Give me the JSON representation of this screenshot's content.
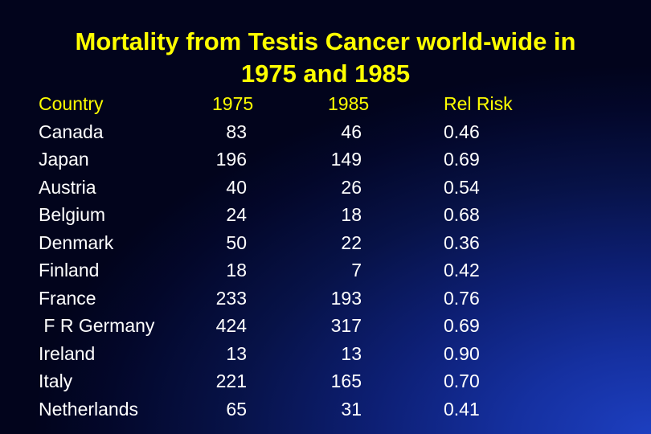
{
  "title": {
    "line1": "Mortality from Testis Cancer world-wide in",
    "line2": "1975 and 1985"
  },
  "table": {
    "headers": [
      "Country",
      "1975",
      "1985",
      "Rel Risk"
    ],
    "rows": [
      {
        "country": "Canada",
        "y1975": "83",
        "y1985": "46",
        "rel_risk": "0.46"
      },
      {
        "country": "Japan",
        "y1975": "196",
        "y1985": "149",
        "rel_risk": "0.69"
      },
      {
        "country": "Austria",
        "y1975": "40",
        "y1985": "26",
        "rel_risk": "0.54"
      },
      {
        "country": "Belgium",
        "y1975": "24",
        "y1985": "18",
        "rel_risk": "0.68"
      },
      {
        "country": "Denmark",
        "y1975": "50",
        "y1985": "22",
        "rel_risk": "0.36"
      },
      {
        "country": "Finland",
        "y1975": "18",
        "y1985": "7",
        "rel_risk": "0.42"
      },
      {
        "country": "France",
        "y1975": "233",
        "y1985": "193",
        "rel_risk": "0.76"
      },
      {
        "country": " F R Germany",
        "y1975": "424",
        "y1985": "317",
        "rel_risk": "0.69"
      },
      {
        "country": "Ireland",
        "y1975": "13",
        "y1985": "13",
        "rel_risk": "0.90"
      },
      {
        "country": "Italy",
        "y1975": "221",
        "y1985": "165",
        "rel_risk": "0.70"
      },
      {
        "country": "Netherlands",
        "y1975": "65",
        "y1985": "31",
        "rel_risk": "0.41"
      }
    ]
  }
}
